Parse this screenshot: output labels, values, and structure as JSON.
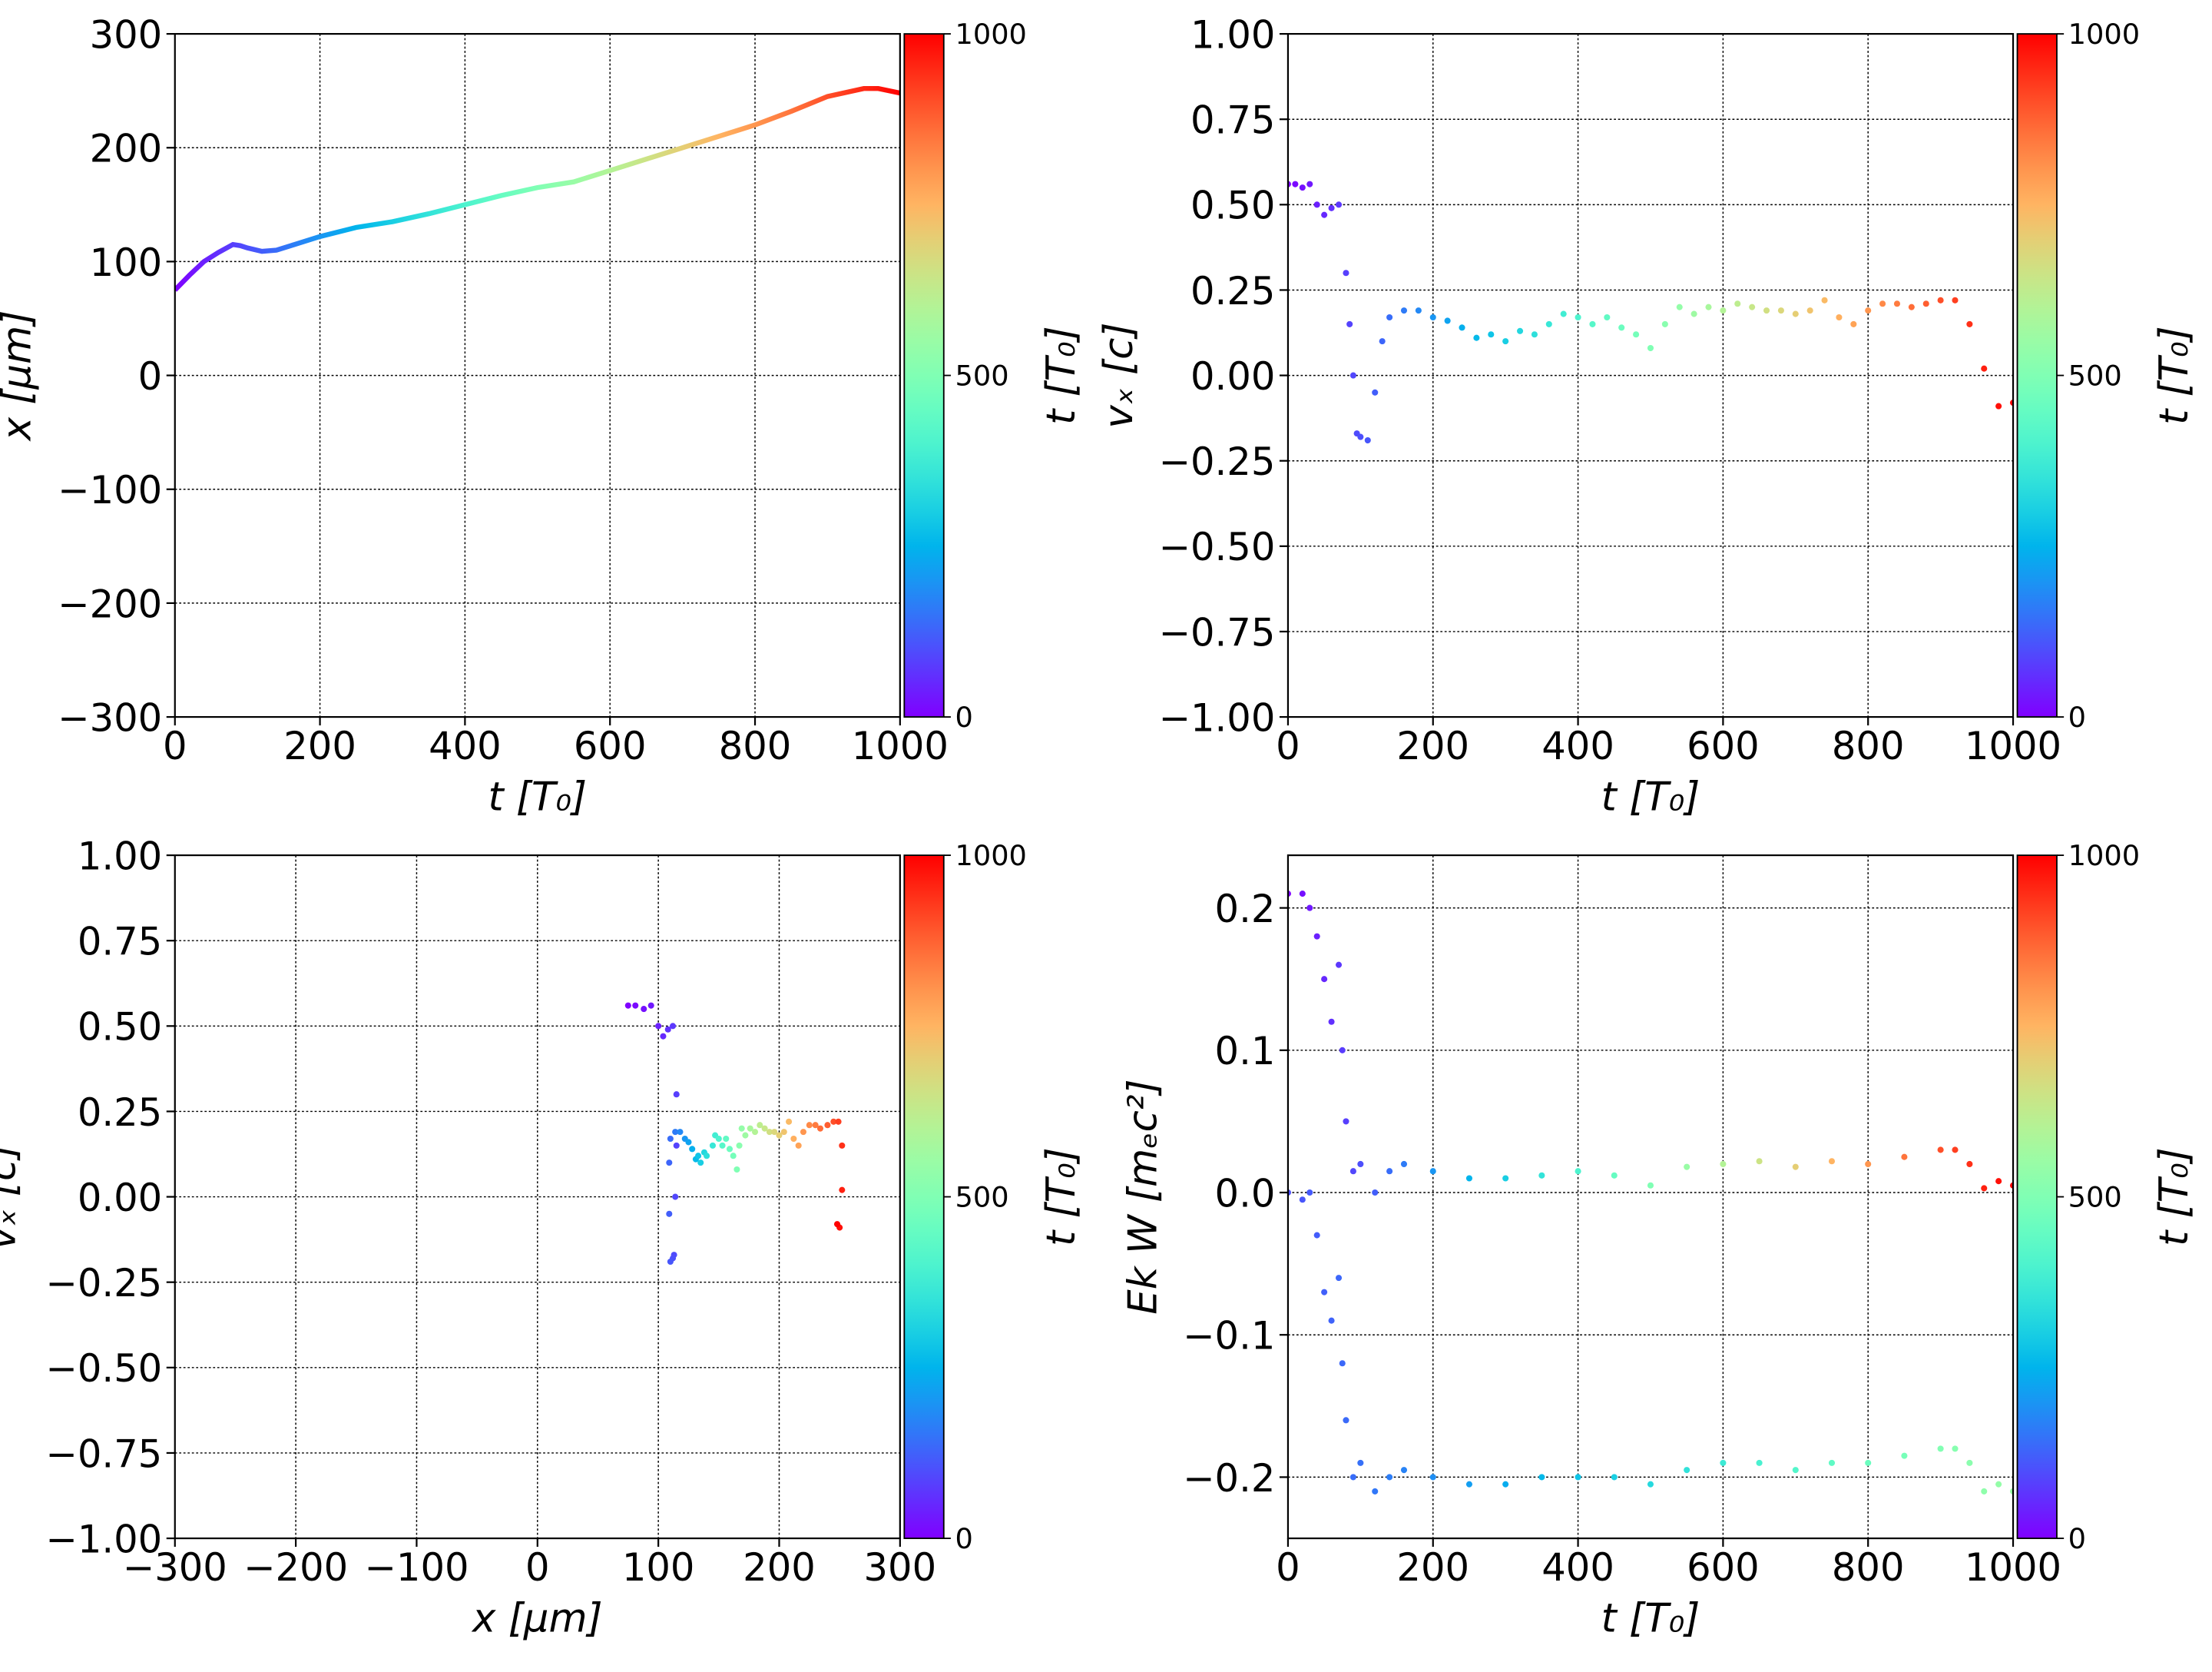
{
  "chart_data": [
    {
      "type": "line",
      "x_label": "t  [T₀]",
      "y_label": "x  [μm]",
      "colormap": "rainbow",
      "color_by": "x",
      "xlim": [
        0,
        1000
      ],
      "ylim": [
        -300,
        300
      ],
      "grid": true,
      "xticks": [
        0,
        200,
        400,
        600,
        800,
        1000
      ],
      "yticks": [
        {
          "value": -300,
          "label": "−300"
        },
        {
          "value": -200,
          "label": "−200"
        },
        {
          "value": -100,
          "label": "−100"
        },
        0,
        100,
        200,
        300
      ],
      "colorbar": {
        "label": "t [T₀]",
        "lim": [
          0,
          1000
        ],
        "ticks": [
          0,
          500,
          1000
        ]
      },
      "x": [
        0,
        20,
        40,
        60,
        80,
        90,
        100,
        120,
        140,
        160,
        200,
        250,
        300,
        350,
        400,
        450,
        500,
        550,
        600,
        650,
        700,
        750,
        800,
        850,
        900,
        950,
        970,
        1000
      ],
      "series": [
        {
          "values": [
            75,
            88,
            100,
            108,
            115,
            114,
            112,
            109,
            110,
            114,
            122,
            130,
            135,
            142,
            150,
            158,
            165,
            170,
            180,
            190,
            200,
            210,
            220,
            232,
            245,
            252,
            252,
            248
          ]
        }
      ]
    },
    {
      "type": "scatter",
      "x_label": "t [T₀]",
      "y_label": "vₓ [c]",
      "colormap": "rainbow",
      "xlim": [
        0,
        1000
      ],
      "ylim": [
        -1,
        1
      ],
      "grid": true,
      "xticks": [
        0,
        200,
        400,
        600,
        800,
        1000
      ],
      "yticks": [
        {
          "value": -1,
          "label": "−1.00"
        },
        {
          "value": -0.75,
          "label": "−0.75"
        },
        {
          "value": -0.5,
          "label": "−0.50"
        },
        {
          "value": -0.25,
          "label": "−0.25"
        },
        {
          "value": 0,
          "label": "0.00"
        },
        0.25,
        {
          "value": 0.5,
          "label": "0.50"
        },
        0.75,
        {
          "value": 1,
          "label": "1.00"
        }
      ],
      "colorbar": {
        "label": "t [T₀]",
        "lim": [
          0,
          1000
        ],
        "ticks": [
          0,
          500,
          1000
        ]
      },
      "x": [
        0,
        10,
        20,
        30,
        40,
        50,
        60,
        70,
        80,
        85,
        90,
        95,
        100,
        110,
        120,
        130,
        140,
        160,
        180,
        200,
        220,
        240,
        260,
        280,
        300,
        320,
        340,
        360,
        380,
        400,
        420,
        440,
        460,
        480,
        500,
        520,
        540,
        560,
        580,
        600,
        620,
        640,
        660,
        680,
        700,
        720,
        740,
        760,
        780,
        800,
        820,
        840,
        860,
        880,
        900,
        920,
        940,
        960,
        980,
        1000
      ],
      "series": [
        {
          "values": [
            0.56,
            0.56,
            0.55,
            0.56,
            0.5,
            0.47,
            0.49,
            0.5,
            0.3,
            0.15,
            0,
            -0.17,
            -0.18,
            -0.19,
            -0.05,
            0.1,
            0.17,
            0.19,
            0.19,
            0.17,
            0.16,
            0.14,
            0.11,
            0.12,
            0.1,
            0.13,
            0.12,
            0.15,
            0.18,
            0.17,
            0.15,
            0.17,
            0.14,
            0.12,
            0.08,
            0.15,
            0.2,
            0.18,
            0.2,
            0.19,
            0.21,
            0.2,
            0.19,
            0.19,
            0.18,
            0.19,
            0.22,
            0.17,
            0.15,
            0.19,
            0.21,
            0.21,
            0.2,
            0.21,
            0.22,
            0.22,
            0.15,
            0.02,
            -0.09,
            -0.08
          ],
          "c": [
            0,
            10,
            20,
            30,
            40,
            50,
            60,
            70,
            80,
            85,
            90,
            95,
            100,
            110,
            120,
            130,
            140,
            160,
            180,
            200,
            220,
            240,
            260,
            280,
            300,
            320,
            340,
            360,
            380,
            400,
            420,
            440,
            460,
            480,
            500,
            520,
            540,
            560,
            580,
            600,
            620,
            640,
            660,
            680,
            700,
            720,
            740,
            760,
            780,
            800,
            820,
            840,
            860,
            880,
            900,
            920,
            940,
            960,
            980,
            1000
          ]
        }
      ]
    },
    {
      "type": "scatter",
      "x_label": "x [μm]",
      "y_label": "vₓ [c]",
      "colormap": "rainbow",
      "xlim": [
        -300,
        300
      ],
      "ylim": [
        -1,
        1
      ],
      "grid": true,
      "xticks": [
        {
          "value": -300,
          "label": "−300"
        },
        {
          "value": -200,
          "label": "−200"
        },
        {
          "value": -100,
          "label": "−100"
        },
        0,
        100,
        200,
        300
      ],
      "yticks": [
        {
          "value": -1,
          "label": "−1.00"
        },
        {
          "value": -0.75,
          "label": "−0.75"
        },
        {
          "value": -0.5,
          "label": "−0.50"
        },
        {
          "value": -0.25,
          "label": "−0.25"
        },
        {
          "value": 0,
          "label": "0.00"
        },
        0.25,
        {
          "value": 0.5,
          "label": "0.50"
        },
        0.75,
        {
          "value": 1,
          "label": "1.00"
        }
      ],
      "colorbar": {
        "label": "t [T₀]",
        "lim": [
          0,
          1000
        ],
        "ticks": [
          0,
          500,
          1000
        ]
      },
      "x": [
        75,
        81,
        88,
        94,
        100,
        104,
        108,
        112,
        115,
        115,
        114,
        113,
        112,
        110,
        109,
        109,
        110,
        114,
        118,
        122,
        125,
        128,
        131,
        133,
        135,
        138,
        140,
        145,
        147,
        150,
        153,
        156,
        159,
        162,
        165,
        167,
        169,
        172,
        176,
        180,
        184,
        188,
        192,
        196,
        200,
        204,
        208,
        212,
        216,
        220,
        225,
        230,
        234,
        240,
        245,
        249,
        252,
        252,
        250,
        248
      ],
      "series": [
        {
          "values": [
            0.56,
            0.56,
            0.55,
            0.56,
            0.5,
            0.47,
            0.49,
            0.5,
            0.3,
            0.15,
            0,
            -0.17,
            -0.18,
            -0.19,
            -0.05,
            0.1,
            0.17,
            0.19,
            0.19,
            0.17,
            0.16,
            0.14,
            0.11,
            0.12,
            0.1,
            0.13,
            0.12,
            0.15,
            0.18,
            0.17,
            0.15,
            0.17,
            0.14,
            0.12,
            0.08,
            0.15,
            0.2,
            0.18,
            0.2,
            0.19,
            0.21,
            0.2,
            0.19,
            0.19,
            0.18,
            0.19,
            0.22,
            0.17,
            0.15,
            0.19,
            0.21,
            0.21,
            0.2,
            0.21,
            0.22,
            0.22,
            0.15,
            0.02,
            -0.09,
            -0.08
          ],
          "c": [
            0,
            10,
            20,
            30,
            40,
            50,
            60,
            70,
            80,
            85,
            90,
            95,
            100,
            110,
            120,
            130,
            140,
            160,
            180,
            200,
            220,
            240,
            260,
            280,
            300,
            320,
            340,
            360,
            380,
            400,
            420,
            440,
            460,
            480,
            500,
            520,
            540,
            560,
            580,
            600,
            620,
            640,
            660,
            680,
            700,
            720,
            740,
            760,
            780,
            800,
            820,
            840,
            860,
            880,
            900,
            920,
            940,
            960,
            980,
            1000
          ]
        }
      ]
    },
    {
      "type": "scatter",
      "x_label": "t [T₀]",
      "y_label": "Ek W [mₑc²]",
      "colormap": "rainbow",
      "xlim": [
        0,
        1000
      ],
      "ylim": [
        -0.243,
        0.237
      ],
      "grid": true,
      "xticks": [
        0,
        200,
        400,
        600,
        800,
        1000
      ],
      "yticks": [
        {
          "value": -0.2,
          "label": "−0.2"
        },
        {
          "value": -0.1,
          "label": "−0.1"
        },
        {
          "value": 0,
          "label": "0.0"
        },
        0.1,
        0.2
      ],
      "colorbar": {
        "label": "t [T₀]",
        "lim": [
          0,
          1000
        ],
        "ticks": [
          0,
          500,
          1000
        ]
      },
      "x": [
        0,
        20,
        30,
        40,
        50,
        60,
        70,
        75,
        80,
        90,
        100,
        120,
        140,
        160,
        200,
        250,
        300,
        350,
        400,
        450,
        500,
        550,
        600,
        650,
        700,
        750,
        800,
        850,
        900,
        920,
        940,
        960,
        980,
        1000
      ],
      "series": [
        {
          "values": [
            0.21,
            0.21,
            0.2,
            0.18,
            0.15,
            0.12,
            0.16,
            0.1,
            0.05,
            0.015,
            0.02,
            0,
            0.015,
            0.02,
            0.015,
            0.01,
            0.01,
            0.012,
            0.015,
            0.012,
            0.005,
            0.018,
            0.02,
            0.022,
            0.018,
            0.022,
            0.02,
            0.025,
            0.03,
            0.03,
            0.02,
            0.003,
            0.008,
            0.005
          ],
          "c": [
            0,
            20,
            30,
            40,
            50,
            60,
            70,
            75,
            80,
            90,
            100,
            120,
            140,
            160,
            200,
            250,
            300,
            350,
            400,
            450,
            500,
            550,
            600,
            650,
            700,
            750,
            800,
            850,
            900,
            920,
            940,
            960,
            980,
            1000
          ]
        },
        {
          "values": [
            0,
            -0.005,
            0,
            -0.03,
            -0.07,
            -0.09,
            -0.06,
            -0.12,
            -0.16,
            -0.2,
            -0.19,
            -0.21,
            -0.2,
            -0.195,
            -0.2,
            -0.205,
            -0.205,
            -0.2,
            -0.2,
            -0.2,
            -0.205,
            -0.195,
            -0.19,
            -0.19,
            -0.195,
            -0.19,
            -0.19,
            -0.185,
            -0.18,
            -0.18,
            -0.19,
            -0.21,
            -0.205,
            -0.21
          ],
          "c": [
            100,
            109,
            114,
            118,
            123,
            127,
            132,
            134,
            136,
            141,
            145,
            154,
            163,
            172,
            190,
            213,
            235,
            258,
            280,
            303,
            325,
            348,
            370,
            393,
            415,
            438,
            460,
            483,
            505,
            514,
            523,
            532,
            541,
            550
          ]
        }
      ]
    }
  ]
}
